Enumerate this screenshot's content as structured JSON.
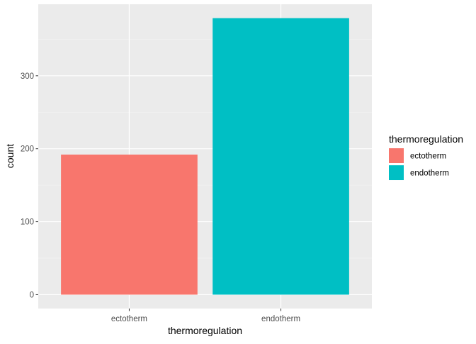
{
  "chart_data": {
    "type": "bar",
    "categories": [
      "ectotherm",
      "endotherm"
    ],
    "values": [
      192,
      379
    ],
    "colors": [
      "#F8766D",
      "#00BFC4"
    ],
    "title": "",
    "xlabel": "thermoregulation",
    "ylabel": "count",
    "yticks": [
      0,
      100,
      200,
      300
    ],
    "ylim": [
      -19,
      398
    ],
    "grid": true,
    "legend": {
      "title": "thermoregulation",
      "placement": "right",
      "entries": [
        "ectotherm",
        "endotherm"
      ]
    }
  }
}
